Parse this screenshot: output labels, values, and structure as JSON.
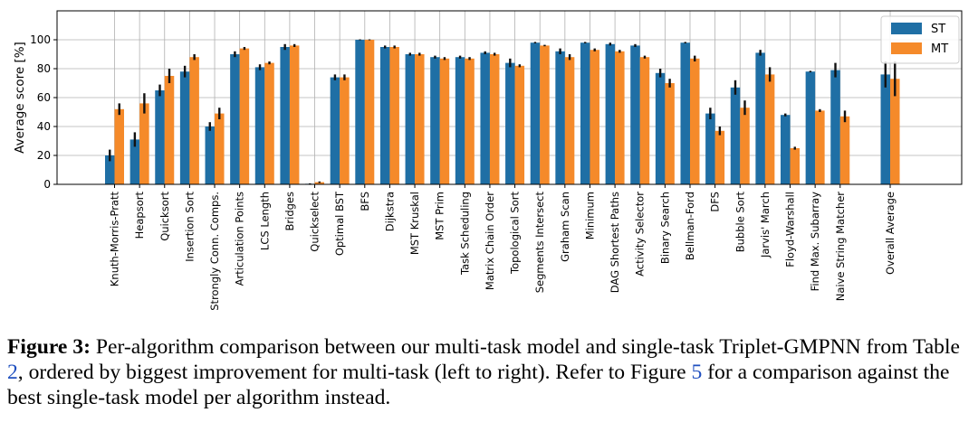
{
  "chart_data": {
    "type": "bar",
    "ylabel": "Average score [%]",
    "xlabel": "",
    "ylim": [
      0,
      120
    ],
    "yticks": [
      0,
      20,
      40,
      60,
      80,
      100
    ],
    "grid": true,
    "legend_position": "top-right",
    "categories": [
      "Knuth-Morris-Pratt",
      "Heapsort",
      "Quicksort",
      "Insertion Sort",
      "Strongly Conn. Comps.",
      "Articulation Points",
      "LCS Length",
      "Bridges",
      "Quickselect",
      "Optimal BST",
      "BFS",
      "Dijkstra",
      "MST Kruskal",
      "MST Prim",
      "Task Scheduling",
      "Matrix Chain Order",
      "Topological Sort",
      "Segments Intersect",
      "Graham Scan",
      "Minimum",
      "DAG Shortest Paths",
      "Activity Selector",
      "Binary Search",
      "Bellman-Ford",
      "DFS",
      "Bubble Sort",
      "Jarvis' March",
      "Floyd-Warshall",
      "Find Max. Subarray",
      "Naive String Matcher",
      "",
      "Overall Average"
    ],
    "series": [
      {
        "name": "ST",
        "color": "#1f6fa5",
        "values": [
          20,
          31,
          65,
          78,
          40,
          90,
          81,
          95,
          0.4,
          74,
          100,
          95,
          90,
          88,
          88,
          91,
          84,
          98,
          92,
          98,
          97,
          96,
          77,
          98,
          49,
          67,
          91,
          48,
          78,
          79,
          null,
          76
        ],
        "errors": [
          4,
          5,
          4,
          4,
          3,
          2,
          2,
          2,
          0.3,
          2,
          0.3,
          1,
          1,
          1,
          1,
          1,
          3,
          0.5,
          2,
          0.5,
          1,
          1,
          3,
          0.5,
          4,
          5,
          2,
          1,
          0.5,
          5,
          null,
          9
        ]
      },
      {
        "name": "MT",
        "color": "#f58a2a",
        "values": [
          52,
          56,
          75,
          88,
          49,
          94,
          84,
          96,
          1.5,
          74,
          100,
          95,
          90,
          87,
          87,
          90,
          82,
          96,
          88,
          93,
          92,
          88,
          70,
          87,
          37,
          53,
          76,
          25,
          51,
          47,
          null,
          73
        ],
        "errors": [
          4,
          7,
          5,
          2,
          4,
          1,
          1,
          1,
          0.5,
          2,
          0.3,
          1,
          1,
          1,
          1,
          1,
          1,
          0.5,
          2,
          1,
          1,
          1,
          3,
          2,
          3,
          5,
          5,
          1,
          1,
          4,
          null,
          12
        ]
      }
    ]
  },
  "caption": {
    "label": "Figure 3:",
    "part1": " Per-algorithm comparison between our multi-task model and single-task Triplet-GMPNN from Table ",
    "ref1": "2",
    "part2": ", ordered by biggest improvement for multi-task (left to right). Refer to Figure ",
    "ref2": "5",
    "part3": " for a comparison against the best single-task model per algorithm instead."
  }
}
